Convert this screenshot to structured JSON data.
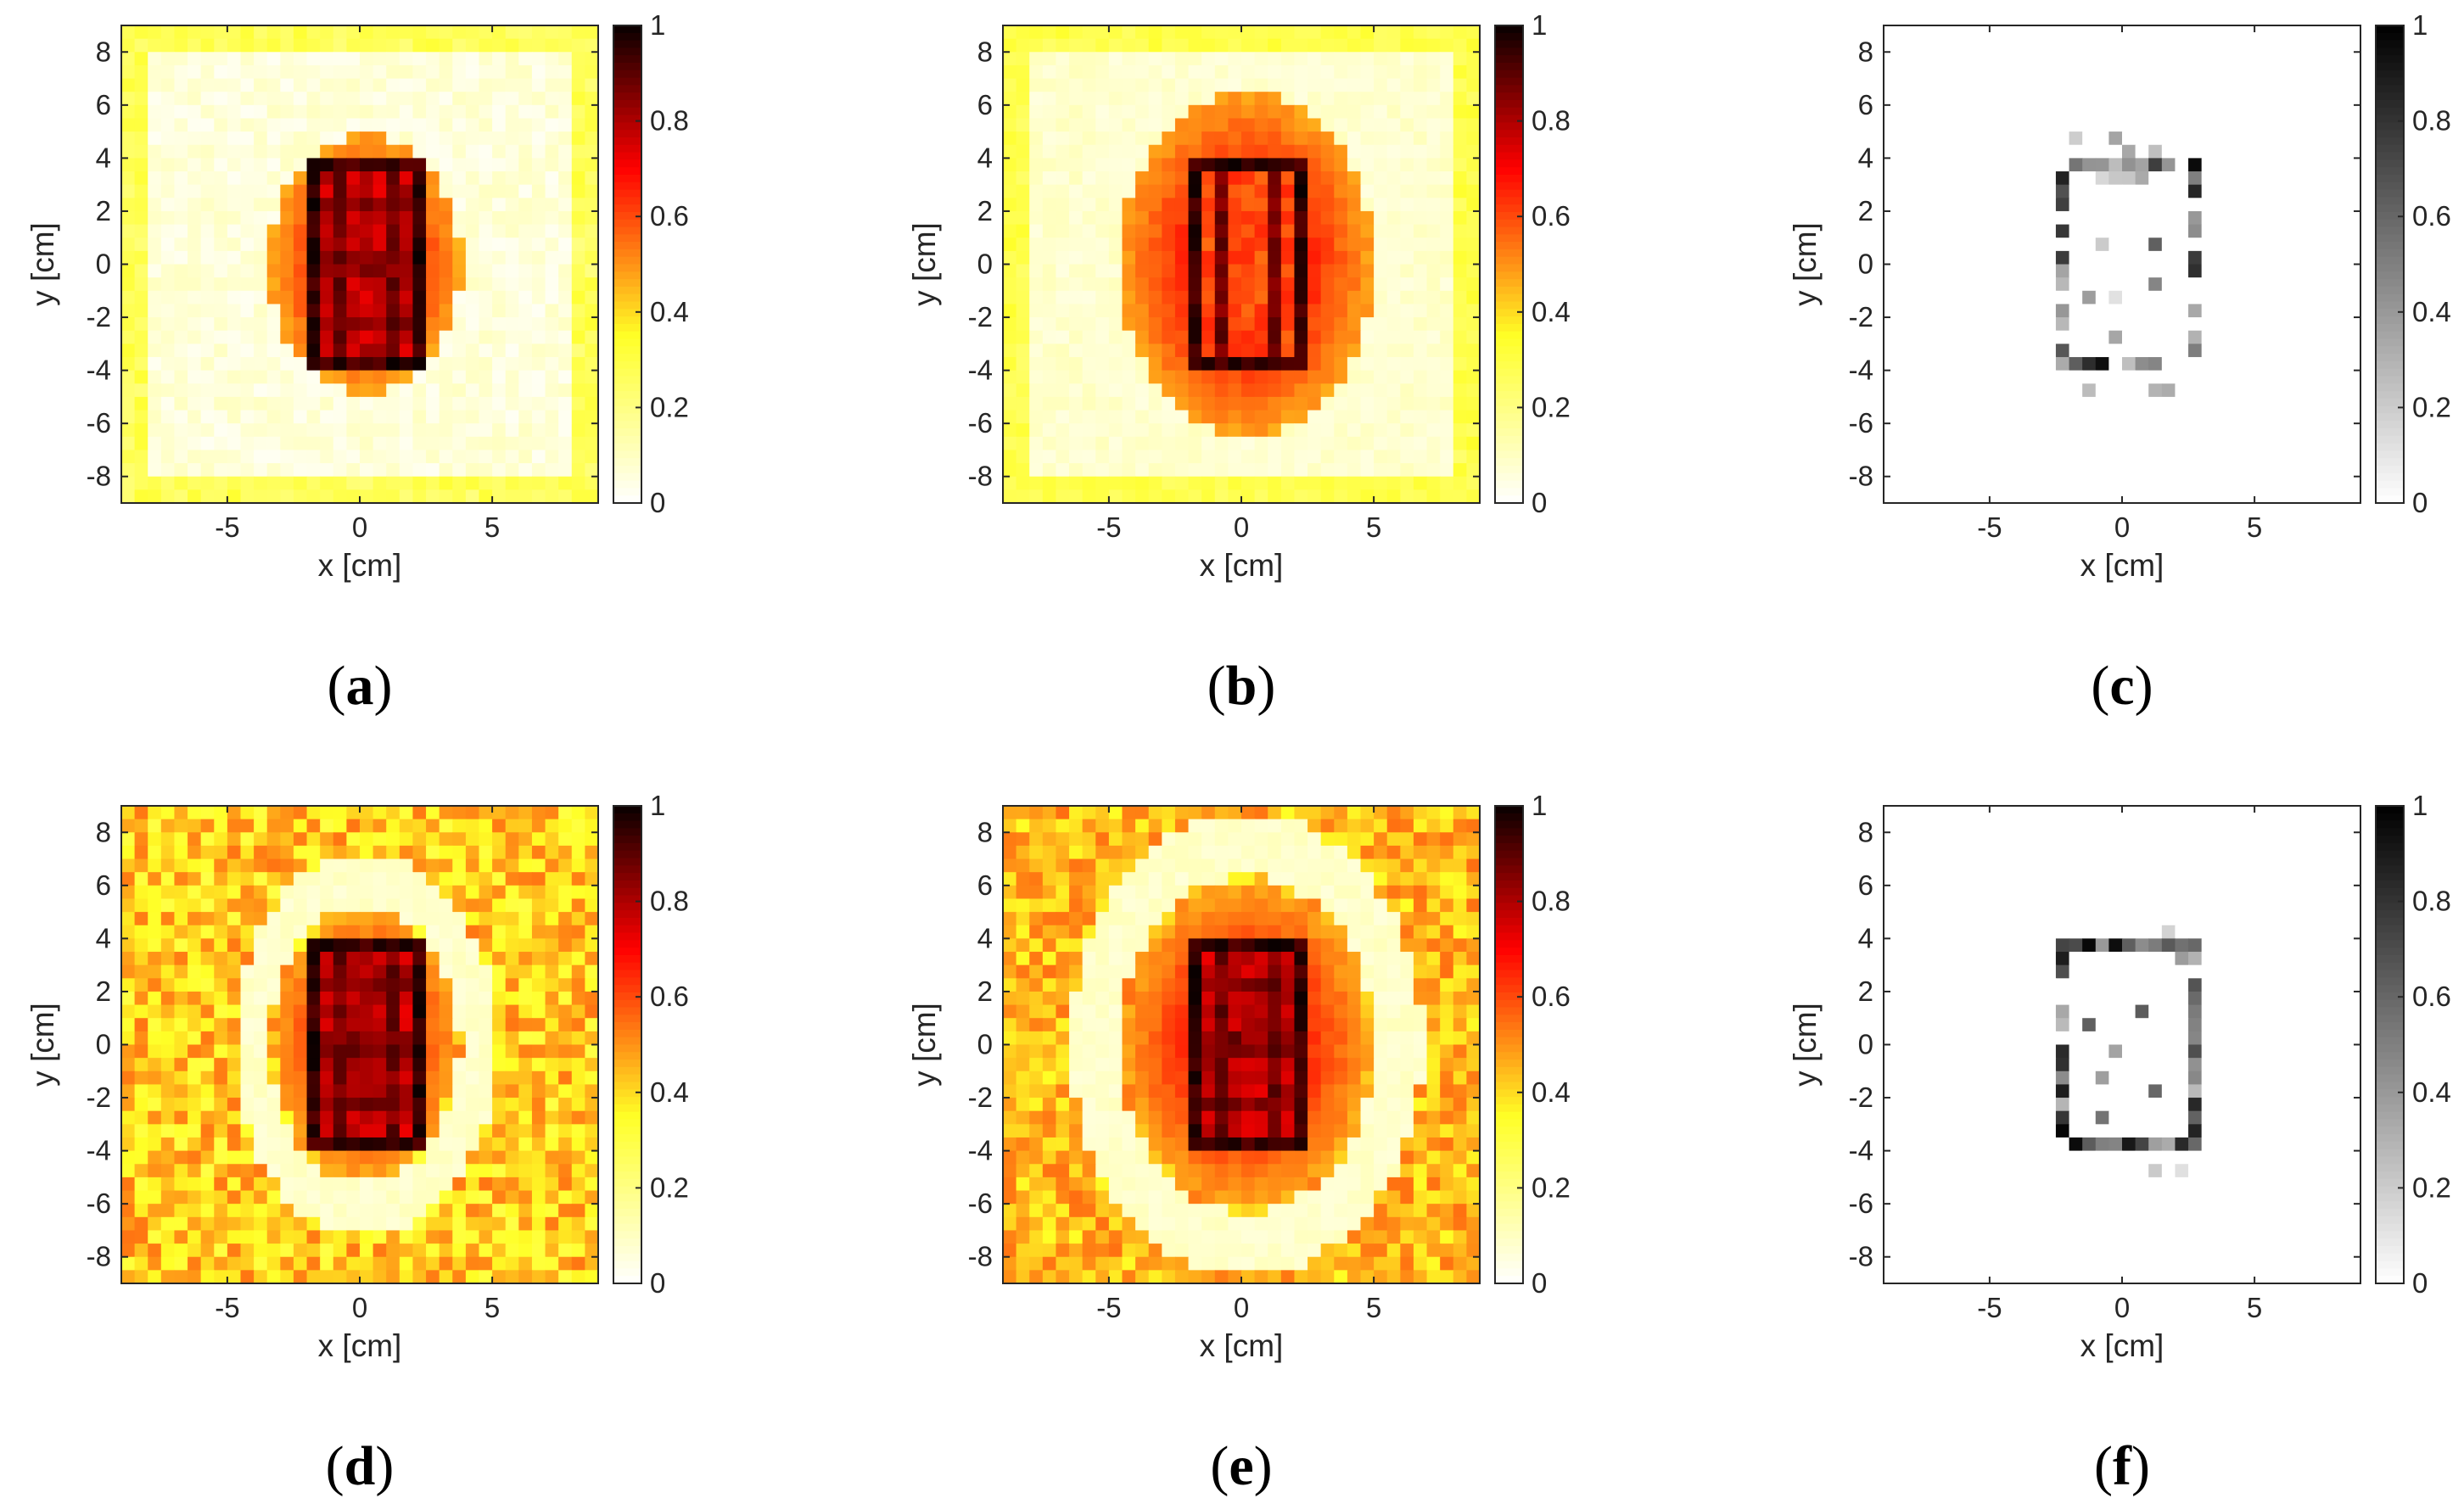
{
  "chart_data": [
    {
      "panel": "(a)",
      "type": "heatmap",
      "colormap": "hot",
      "xlabel": "x [cm]",
      "ylabel": "y [cm]",
      "xlim": [
        -9,
        9
      ],
      "ylim": [
        -9,
        9
      ],
      "xticks": [
        -5,
        0,
        5
      ],
      "yticks": [
        8,
        6,
        4,
        2,
        0,
        -2,
        -4,
        -6,
        -8
      ],
      "colorbar": {
        "min": 0,
        "max": 1,
        "ticks": [
          0,
          0.2,
          0.4,
          0.6,
          0.8,
          1
        ]
      },
      "grid": false,
      "legend": "none",
      "pattern": {
        "kind": "reconstruction",
        "center": [
          0.2,
          0
        ],
        "rect_half": [
          2.4,
          3.9
        ],
        "halo": [
          3.6,
          4.9
        ],
        "background": 0.06,
        "noise": 0.04,
        "inner_rows": true,
        "inner_cols": true,
        "ring": false
      }
    },
    {
      "panel": "(b)",
      "type": "heatmap",
      "colormap": "hot",
      "xlabel": "x [cm]",
      "ylabel": "y [cm]",
      "xlim": [
        -9,
        9
      ],
      "ylim": [
        -9,
        9
      ],
      "xticks": [
        -5,
        0,
        5
      ],
      "yticks": [
        8,
        6,
        4,
        2,
        0,
        -2,
        -4,
        -6,
        -8
      ],
      "colorbar": {
        "min": 0,
        "max": 1,
        "ticks": [
          0,
          0.2,
          0.4,
          0.6,
          0.8,
          1
        ]
      },
      "grid": false,
      "legend": "none",
      "pattern": {
        "kind": "reconstruction",
        "center": [
          0.2,
          0
        ],
        "rect_half": [
          2.4,
          3.9
        ],
        "halo": [
          4.8,
          6.5
        ],
        "background": 0.08,
        "noise": 0.03,
        "inner_rows": false,
        "inner_cols": true,
        "ring": true
      }
    },
    {
      "panel": "(c)",
      "type": "heatmap",
      "colormap": "gray",
      "xlabel": "x [cm]",
      "ylabel": "y [cm]",
      "xlim": [
        -9,
        9
      ],
      "ylim": [
        -9,
        9
      ],
      "xticks": [
        -5,
        0,
        5
      ],
      "yticks": [
        8,
        6,
        4,
        2,
        0,
        -2,
        -4,
        -6,
        -8
      ],
      "colorbar": {
        "min": 0,
        "max": 1,
        "ticks": [
          0,
          0.2,
          0.4,
          0.6,
          0.8,
          1
        ]
      },
      "grid": false,
      "legend": "none",
      "pattern": {
        "kind": "outline",
        "center": [
          0.2,
          0
        ],
        "rect_half": [
          2.4,
          3.9
        ],
        "density": 0.7
      }
    },
    {
      "panel": "(d)",
      "type": "heatmap",
      "colormap": "hot",
      "xlabel": "x [cm]",
      "ylabel": "y [cm]",
      "xlim": [
        -9,
        9
      ],
      "ylim": [
        -9,
        9
      ],
      "xticks": [
        -5,
        0,
        5
      ],
      "yticks": [
        8,
        6,
        4,
        2,
        0,
        -2,
        -4,
        -6,
        -8
      ],
      "colorbar": {
        "min": 0,
        "max": 1,
        "ticks": [
          0,
          0.2,
          0.4,
          0.6,
          0.8,
          1
        ]
      },
      "grid": false,
      "legend": "none",
      "pattern": {
        "kind": "reconstruction",
        "center": [
          0.2,
          0
        ],
        "rect_half": [
          2.4,
          3.9
        ],
        "halo": [
          3.4,
          5.0
        ],
        "background": 0.42,
        "noise": 0.12,
        "inner_rows": true,
        "inner_cols": true,
        "ring": true
      }
    },
    {
      "panel": "(e)",
      "type": "heatmap",
      "colormap": "hot",
      "xlabel": "x [cm]",
      "ylabel": "y [cm]",
      "xlim": [
        -9,
        9
      ],
      "ylim": [
        -9,
        9
      ],
      "xticks": [
        -5,
        0,
        5
      ],
      "yticks": [
        8,
        6,
        4,
        2,
        0,
        -2,
        -4,
        -6,
        -8
      ],
      "colorbar": {
        "min": 0,
        "max": 1,
        "ticks": [
          0,
          0.2,
          0.4,
          0.6,
          0.8,
          1
        ]
      },
      "grid": false,
      "legend": "none",
      "pattern": {
        "kind": "reconstruction",
        "center": [
          0.2,
          0
        ],
        "rect_half": [
          2.4,
          3.9
        ],
        "halo": [
          4.6,
          6.0
        ],
        "background": 0.45,
        "noise": 0.1,
        "inner_rows": true,
        "inner_cols": true,
        "ring": true
      }
    },
    {
      "panel": "(f)",
      "type": "heatmap",
      "colormap": "gray",
      "xlabel": "x [cm]",
      "ylabel": "y [cm]",
      "xlim": [
        -9,
        9
      ],
      "ylim": [
        -9,
        9
      ],
      "xticks": [
        -5,
        0,
        5
      ],
      "yticks": [
        8,
        6,
        4,
        2,
        0,
        -2,
        -4,
        -6,
        -8
      ],
      "colorbar": {
        "min": 0,
        "max": 1,
        "ticks": [
          0,
          0.2,
          0.4,
          0.6,
          0.8,
          1
        ]
      },
      "grid": false,
      "legend": "none",
      "pattern": {
        "kind": "outline",
        "center": [
          0.2,
          0
        ],
        "rect_half": [
          2.4,
          3.9
        ],
        "density": 0.9
      }
    }
  ]
}
